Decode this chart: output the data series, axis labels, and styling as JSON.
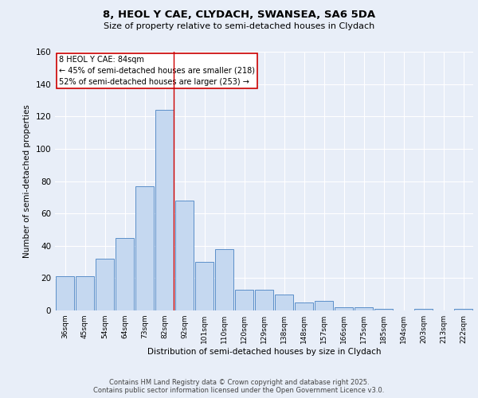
{
  "title_line1": "8, HEOL Y CAE, CLYDACH, SWANSEA, SA6 5DA",
  "title_line2": "Size of property relative to semi-detached houses in Clydach",
  "xlabel": "Distribution of semi-detached houses by size in Clydach",
  "ylabel": "Number of semi-detached properties",
  "bar_labels": [
    "36sqm",
    "45sqm",
    "54sqm",
    "64sqm",
    "73sqm",
    "82sqm",
    "92sqm",
    "101sqm",
    "110sqm",
    "120sqm",
    "129sqm",
    "138sqm",
    "148sqm",
    "157sqm",
    "166sqm",
    "175sqm",
    "185sqm",
    "194sqm",
    "203sqm",
    "213sqm",
    "222sqm"
  ],
  "bar_values": [
    21,
    21,
    32,
    45,
    77,
    124,
    68,
    30,
    38,
    13,
    13,
    10,
    5,
    6,
    2,
    2,
    1,
    0,
    1,
    0,
    1
  ],
  "bar_color": "#c5d8f0",
  "bar_edge_color": "#5b8fc9",
  "background_color": "#e8eef8",
  "plot_bg_color": "#e8eef8",
  "grid_color": "#ffffff",
  "vline_index": 5,
  "vline_color": "#cc0000",
  "annotation_title": "8 HEOL Y CAE: 84sqm",
  "annotation_line1": "← 45% of semi-detached houses are smaller (218)",
  "annotation_line2": "52% of semi-detached houses are larger (253) →",
  "annotation_box_color": "#ffffff",
  "annotation_box_edge": "#cc0000",
  "ylim": [
    0,
    160
  ],
  "yticks": [
    0,
    20,
    40,
    60,
    80,
    100,
    120,
    140,
    160
  ],
  "footer_line1": "Contains HM Land Registry data © Crown copyright and database right 2025.",
  "footer_line2": "Contains public sector information licensed under the Open Government Licence v3.0."
}
